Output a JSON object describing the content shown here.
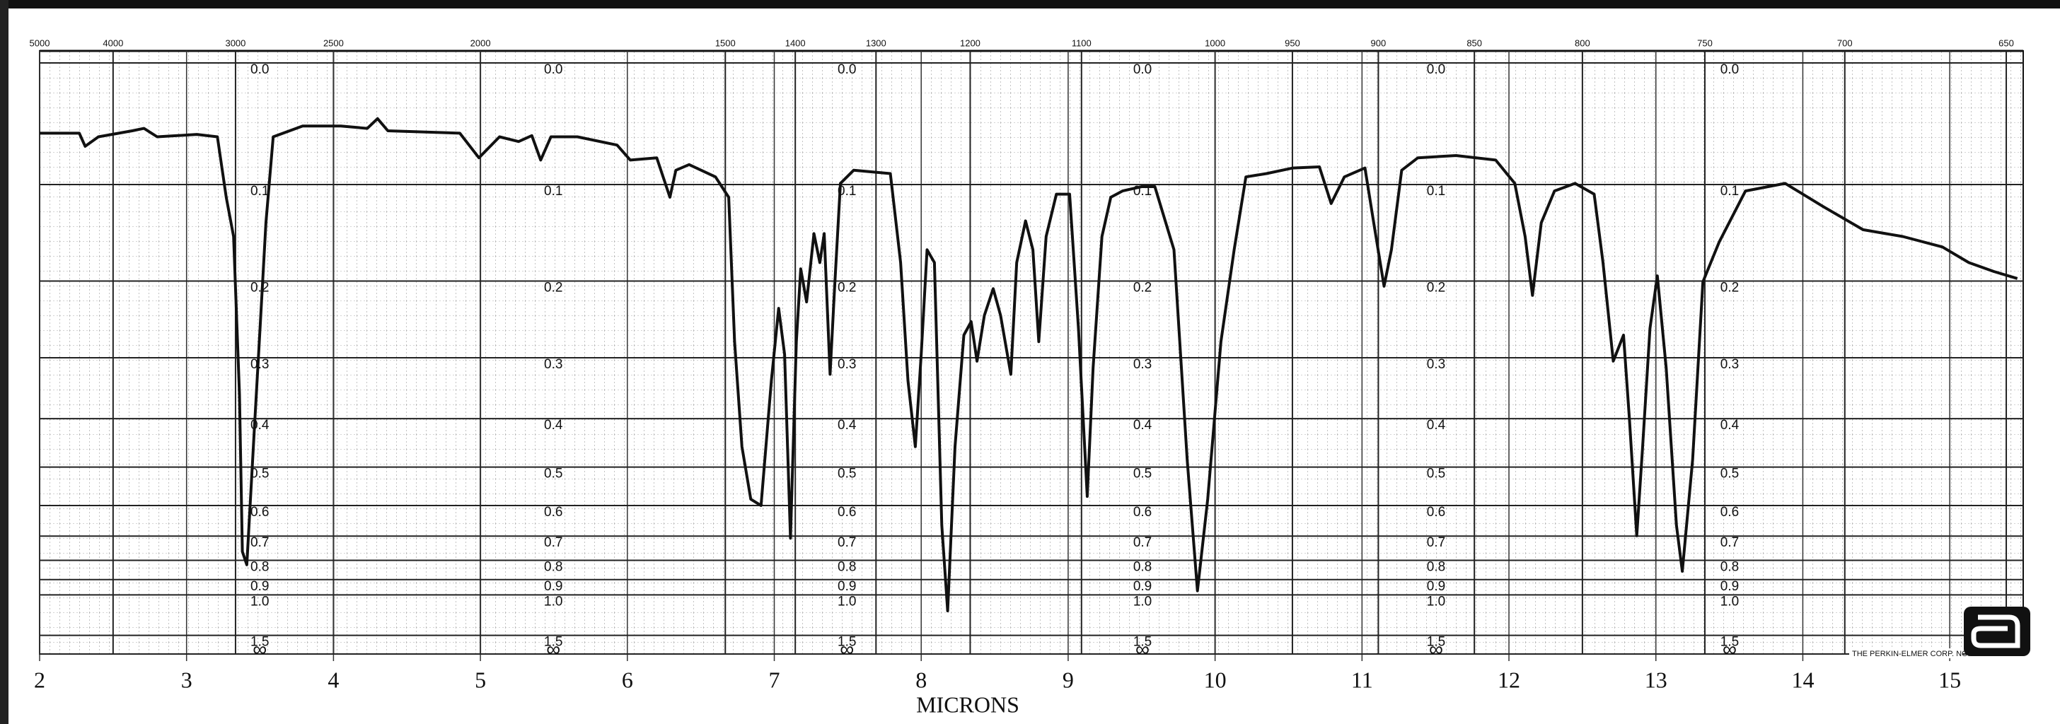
{
  "chart_data": {
    "type": "line",
    "x_label": "MICRONS",
    "xlim": [
      2,
      15.5
    ],
    "xticks": [
      2,
      3,
      4,
      5,
      6,
      7,
      8,
      9,
      10,
      11,
      12,
      13,
      14,
      15
    ],
    "x2scale": "reciprocal",
    "x2ticks": [
      5000,
      4000,
      3000,
      2500,
      2000,
      1500,
      1400,
      1300,
      1200,
      1100,
      1000,
      950,
      900,
      850,
      800,
      750,
      700,
      650
    ],
    "yscale": "absorbance",
    "yticks": [
      {
        "value": 0,
        "label": "0.0"
      },
      0.1,
      0.2,
      0.3,
      0.4,
      0.5,
      0.6,
      0.7,
      0.8,
      0.9,
      {
        "value": 1,
        "label": "1.0"
      },
      1.5
    ],
    "ybottom_label": "∞",
    "grid": true,
    "footer": "THE PERKIN-ELMER CORP. NORW",
    "x": [
      2.0,
      2.27,
      2.31,
      2.4,
      2.63,
      2.71,
      2.8,
      3.07,
      3.21,
      3.27,
      3.32,
      3.36,
      3.38,
      3.41,
      3.46,
      3.5,
      3.54,
      3.59,
      3.79,
      4.05,
      4.23,
      4.3,
      4.37,
      4.86,
      4.99,
      5.13,
      5.26,
      5.35,
      5.41,
      5.48,
      5.66,
      5.93,
      6.02,
      6.2,
      6.29,
      6.33,
      6.42,
      6.6,
      6.69,
      6.73,
      6.78,
      6.84,
      6.91,
      6.98,
      7.03,
      7.07,
      7.11,
      7.15,
      7.18,
      7.22,
      7.27,
      7.31,
      7.34,
      7.38,
      7.41,
      7.45,
      7.54,
      7.79,
      7.86,
      7.91,
      7.96,
      8.0,
      8.04,
      8.09,
      8.14,
      8.18,
      8.23,
      8.29,
      8.34,
      8.38,
      8.43,
      8.49,
      8.54,
      8.61,
      8.65,
      8.71,
      8.76,
      8.8,
      8.85,
      8.92,
      9.01,
      9.07,
      9.13,
      9.17,
      9.23,
      9.29,
      9.37,
      9.5,
      9.59,
      9.72,
      9.81,
      9.88,
      9.95,
      10.04,
      10.13,
      10.21,
      10.35,
      10.53,
      10.71,
      10.79,
      10.88,
      11.02,
      11.08,
      11.15,
      11.2,
      11.27,
      11.38,
      11.64,
      11.91,
      12.04,
      12.11,
      12.16,
      12.22,
      12.31,
      12.45,
      12.58,
      12.64,
      12.71,
      12.78,
      12.82,
      12.87,
      12.91,
      12.96,
      13.01,
      13.07,
      13.14,
      13.18,
      13.25,
      13.32,
      13.43,
      13.61,
      13.88,
      14.14,
      14.41,
      14.68,
      14.95,
      15.13,
      15.3,
      15.46
    ],
    "series": [
      {
        "color": "#111111",
        "values": [
          0.055,
          0.055,
          0.066,
          0.058,
          0.053,
          0.051,
          0.058,
          0.056,
          0.058,
          0.112,
          0.151,
          0.357,
          0.761,
          0.821,
          0.428,
          0.259,
          0.137,
          0.058,
          0.049,
          0.049,
          0.051,
          0.043,
          0.053,
          0.055,
          0.076,
          0.058,
          0.062,
          0.057,
          0.078,
          0.058,
          0.058,
          0.065,
          0.078,
          0.076,
          0.112,
          0.087,
          0.082,
          0.093,
          0.112,
          0.277,
          0.455,
          0.582,
          0.6,
          0.335,
          0.233,
          0.295,
          0.708,
          0.277,
          0.186,
          0.225,
          0.148,
          0.179,
          0.148,
          0.325,
          0.209,
          0.099,
          0.087,
          0.09,
          0.179,
          0.335,
          0.455,
          0.295,
          0.165,
          0.179,
          0.662,
          1.137,
          0.455,
          0.268,
          0.25,
          0.305,
          0.242,
          0.209,
          0.242,
          0.325,
          0.179,
          0.135,
          0.165,
          0.277,
          0.151,
          0.109,
          0.109,
          0.259,
          0.574,
          0.315,
          0.151,
          0.112,
          0.106,
          0.102,
          0.102,
          0.165,
          0.483,
          0.971,
          0.582,
          0.277,
          0.165,
          0.093,
          0.09,
          0.085,
          0.084,
          0.118,
          0.093,
          0.085,
          0.137,
          0.206,
          0.165,
          0.087,
          0.076,
          0.074,
          0.078,
          0.099,
          0.151,
          0.217,
          0.137,
          0.106,
          0.099,
          0.109,
          0.179,
          0.305,
          0.268,
          0.402,
          0.699,
          0.455,
          0.259,
          0.194,
          0.315,
          0.662,
          0.854,
          0.483,
          0.201,
          0.157,
          0.106,
          0.099,
          0.121,
          0.144,
          0.151,
          0.162,
          0.179,
          0.189,
          0.197
        ]
      }
    ]
  }
}
